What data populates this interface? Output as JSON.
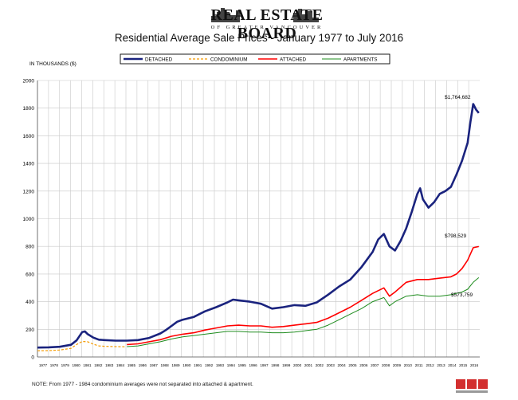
{
  "header": {
    "logo_main": "REAL ESTATE BOARD",
    "logo_sub": "OF GREATER VANCOUVER",
    "title": "Residential Average Sale Prices  -  January 1977 to July 2016"
  },
  "footer": {
    "note": "NOTE:  From 1977 - 1984 condominium averages were not separated into attached & apartment."
  },
  "colors": {
    "detached": "#1a237e",
    "condominium": "#f59b00",
    "attached": "#ff0000",
    "apartments": "#1e8c1e",
    "grid": "#c8c8c8"
  },
  "chart_data": {
    "type": "line",
    "title": "Residential Average Sale Prices  -  January 1977 to July 2016",
    "ylabel": "IN THOUSANDS ($)",
    "ylim": [
      0,
      2000
    ],
    "yticks": [
      0,
      200,
      400,
      600,
      800,
      1000,
      1200,
      1400,
      1600,
      1800,
      2000
    ],
    "xlim": [
      1977,
      2016.583
    ],
    "xtick_labels": [
      "1977",
      "1978",
      "1979",
      "1980",
      "1981",
      "1982",
      "1983",
      "1984",
      "1985",
      "1986",
      "1987",
      "1988",
      "1989",
      "1990",
      "1991",
      "1992",
      "1993",
      "1994",
      "1995",
      "1996",
      "1997",
      "1998",
      "1999",
      "2000",
      "2001",
      "2002",
      "2003",
      "2004",
      "2005",
      "2006",
      "2007",
      "2008",
      "2009",
      "2010",
      "2011",
      "2012",
      "2013",
      "2014",
      "2015",
      "2016"
    ],
    "grid": true,
    "legend_placement": "top",
    "annotations": [
      {
        "text": "$1,764,682",
        "x": 2016.5,
        "y": 1765
      },
      {
        "text": "$798,529",
        "x": 2016.5,
        "y": 799
      },
      {
        "text": "$573,759",
        "x": 2016.5,
        "y": 574
      }
    ],
    "series": [
      {
        "name": "DETACHED",
        "x": [
          1977,
          1978,
          1979,
          1980,
          1980.5,
          1981,
          1981.25,
          1981.5,
          1982,
          1982.5,
          1983,
          1984,
          1985,
          1986,
          1987,
          1988,
          1988.5,
          1989,
          1989.5,
          1990,
          1991,
          1992,
          1993,
          1994,
          1994.5,
          1995,
          1996,
          1997,
          1998,
          1999,
          2000,
          2001,
          2002,
          2003,
          2004,
          2005,
          2006,
          2007,
          2007.5,
          2008,
          2008.5,
          2009,
          2009.5,
          2010,
          2010.5,
          2011,
          2011.25,
          2011.5,
          2012,
          2012.5,
          2013,
          2013.5,
          2014,
          2014.5,
          2015,
          2015.5,
          2015.75,
          2016,
          2016.25,
          2016.5
        ],
        "values": [
          68,
          70,
          74,
          88,
          120,
          180,
          185,
          165,
          140,
          125,
          122,
          118,
          118,
          122,
          138,
          170,
          195,
          225,
          255,
          270,
          290,
          330,
          360,
          395,
          415,
          410,
          400,
          385,
          350,
          360,
          375,
          370,
          395,
          450,
          510,
          560,
          650,
          760,
          850,
          890,
          800,
          770,
          840,
          930,
          1050,
          1180,
          1220,
          1140,
          1080,
          1120,
          1180,
          1200,
          1230,
          1320,
          1420,
          1550,
          1700,
          1830,
          1790,
          1765
        ]
      },
      {
        "name": "CONDOMINIUM",
        "x": [
          1977,
          1978,
          1979,
          1980,
          1980.5,
          1981,
          1981.5,
          1982,
          1982.5,
          1983,
          1984,
          1984.9
        ],
        "values": [
          45,
          46,
          50,
          62,
          90,
          112,
          110,
          92,
          80,
          77,
          75,
          74
        ]
      },
      {
        "name": "ATTACHED",
        "x": [
          1985,
          1986,
          1987,
          1988,
          1989,
          1990,
          1991,
          1992,
          1993,
          1994,
          1995,
          1996,
          1997,
          1998,
          1999,
          2000,
          2001,
          2002,
          2003,
          2004,
          2005,
          2006,
          2007,
          2008,
          2008.5,
          2009,
          2010,
          2011,
          2012,
          2013,
          2014,
          2014.5,
          2015,
          2015.5,
          2016,
          2016.5
        ],
        "values": [
          90,
          95,
          110,
          125,
          150,
          165,
          175,
          195,
          210,
          225,
          230,
          225,
          225,
          215,
          220,
          230,
          240,
          250,
          280,
          320,
          360,
          410,
          460,
          500,
          440,
          470,
          540,
          560,
          560,
          570,
          580,
          600,
          640,
          700,
          790,
          799
        ]
      },
      {
        "name": "APARTMENTS",
        "x": [
          1985,
          1986,
          1987,
          1988,
          1989,
          1990,
          1991,
          1992,
          1993,
          1994,
          1995,
          1996,
          1997,
          1998,
          1999,
          2000,
          2001,
          2002,
          2003,
          2004,
          2005,
          2006,
          2007,
          2008,
          2008.5,
          2009,
          2010,
          2011,
          2012,
          2013,
          2014,
          2015,
          2015.5,
          2016,
          2016.5
        ],
        "values": [
          75,
          80,
          95,
          110,
          130,
          145,
          155,
          165,
          175,
          185,
          185,
          180,
          180,
          175,
          175,
          180,
          190,
          200,
          230,
          270,
          310,
          350,
          400,
          430,
          370,
          400,
          440,
          450,
          440,
          440,
          450,
          470,
          490,
          540,
          574
        ]
      }
    ]
  }
}
